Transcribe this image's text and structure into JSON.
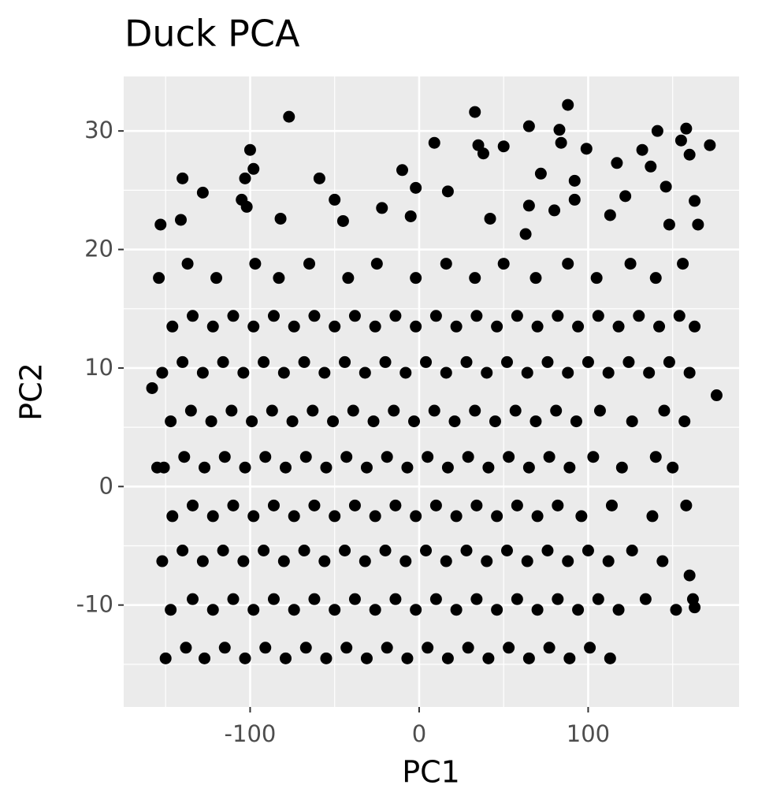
{
  "chart_data": {
    "type": "scatter",
    "title": "Duck PCA",
    "x_label": "PC1",
    "y_label": "PC2",
    "xlim": [
      -174.8,
      189.3
    ],
    "ylim": [
      -18.6,
      34.6
    ],
    "xticks": [
      -100,
      0,
      100
    ],
    "yticks": [
      -10,
      0,
      10,
      20,
      30
    ],
    "grid": true,
    "color": "#000000",
    "background": "#ebebeb",
    "x": [
      -150,
      -138,
      -127,
      -115,
      -103,
      -91,
      -79,
      -67,
      -55,
      -43,
      -31,
      -19,
      -7,
      5,
      17,
      29,
      41,
      53,
      65,
      77,
      89,
      101,
      113,
      -147,
      -134,
      -122,
      -110,
      -98,
      -86,
      -74,
      -62,
      -50,
      -38,
      -26,
      -14,
      -2,
      10,
      22,
      34,
      46,
      58,
      70,
      82,
      94,
      106,
      118,
      134,
      152,
      162,
      -152,
      -140,
      -128,
      -116,
      -104,
      -92,
      -80,
      -68,
      -56,
      -44,
      -32,
      -20,
      -8,
      4,
      16,
      28,
      40,
      52,
      64,
      76,
      88,
      100,
      112,
      126,
      144,
      -146,
      -134,
      -122,
      -110,
      -98,
      -86,
      -74,
      -62,
      -50,
      -38,
      -26,
      -14,
      -2,
      10,
      22,
      34,
      46,
      58,
      70,
      82,
      96,
      114,
      138,
      158,
      -151,
      -139,
      -127,
      -115,
      -103,
      -91,
      -79,
      -67,
      -55,
      -43,
      -31,
      -19,
      -7,
      5,
      17,
      29,
      41,
      53,
      65,
      77,
      89,
      103,
      120,
      140,
      150,
      -147,
      -135,
      -123,
      -111,
      -99,
      -87,
      -75,
      -63,
      -51,
      -39,
      -27,
      -15,
      -3,
      9,
      21,
      33,
      45,
      57,
      69,
      81,
      93,
      107,
      126,
      145,
      157,
      -152,
      -140,
      -128,
      -116,
      -104,
      -92,
      -80,
      -68,
      -56,
      -44,
      -32,
      -20,
      -8,
      4,
      16,
      28,
      40,
      52,
      64,
      76,
      88,
      100,
      112,
      124,
      136,
      148,
      160,
      -146,
      -134,
      -122,
      -110,
      -98,
      -86,
      -74,
      -62,
      -50,
      -38,
      -26,
      -14,
      -2,
      10,
      22,
      34,
      46,
      58,
      70,
      82,
      94,
      106,
      118,
      130,
      142,
      154,
      163,
      -154,
      -137,
      -120,
      -97,
      -83,
      -65,
      -42,
      -25,
      -2,
      16,
      33,
      50,
      69,
      88,
      105,
      125,
      140,
      156,
      -77,
      33,
      88,
      65,
      83,
      158,
      141,
      172,
      -100,
      9,
      35,
      50,
      99,
      132,
      155,
      84,
      -140,
      -128,
      -98,
      -103,
      -59,
      -10,
      72,
      117,
      92,
      137,
      146,
      160,
      -105,
      -102,
      -50,
      -22,
      17,
      65,
      80,
      92,
      122,
      163,
      -82,
      -141,
      -153,
      -45,
      -5,
      42,
      113,
      148,
      165,
      -2,
      38,
      63,
      -155,
      -158,
      176,
      163,
      160
    ],
    "values": [
      -14.5,
      -13.6,
      -14.5,
      -13.6,
      -14.5,
      -13.6,
      -14.5,
      -13.6,
      -14.5,
      -13.6,
      -14.5,
      -13.6,
      -14.5,
      -13.6,
      -14.5,
      -13.6,
      -14.5,
      -13.6,
      -14.5,
      -13.6,
      -14.5,
      -13.6,
      -14.5,
      -10.4,
      -9.5,
      -10.4,
      -9.5,
      -10.4,
      -9.5,
      -10.4,
      -9.5,
      -10.4,
      -9.5,
      -10.4,
      -9.5,
      -10.4,
      -9.5,
      -10.4,
      -9.5,
      -10.4,
      -9.5,
      -10.4,
      -9.5,
      -10.4,
      -9.5,
      -10.4,
      -9.5,
      -10.4,
      -9.5,
      -6.3,
      -5.4,
      -6.3,
      -5.4,
      -6.3,
      -5.4,
      -6.3,
      -5.4,
      -6.3,
      -5.4,
      -6.3,
      -5.4,
      -6.3,
      -5.4,
      -6.3,
      -5.4,
      -6.3,
      -5.4,
      -6.3,
      -5.4,
      -6.3,
      -5.4,
      -6.3,
      -5.4,
      -6.3,
      -2.5,
      -1.6,
      -2.5,
      -1.6,
      -2.5,
      -1.6,
      -2.5,
      -1.6,
      -2.5,
      -1.6,
      -2.5,
      -1.6,
      -2.5,
      -1.6,
      -2.5,
      -1.6,
      -2.5,
      -1.6,
      -2.5,
      -1.6,
      -2.5,
      -1.6,
      -2.5,
      -1.6,
      1.6,
      2.5,
      1.6,
      2.5,
      1.6,
      2.5,
      1.6,
      2.5,
      1.6,
      2.5,
      1.6,
      2.5,
      1.6,
      2.5,
      1.6,
      2.5,
      1.6,
      2.5,
      1.6,
      2.5,
      1.6,
      2.5,
      1.6,
      2.5,
      1.6,
      5.5,
      6.4,
      5.5,
      6.4,
      5.5,
      6.4,
      5.5,
      6.4,
      5.5,
      6.4,
      5.5,
      6.4,
      5.5,
      6.4,
      5.5,
      6.4,
      5.5,
      6.4,
      5.5,
      6.4,
      5.5,
      6.4,
      5.5,
      6.4,
      5.5,
      9.6,
      10.5,
      9.6,
      10.5,
      9.6,
      10.5,
      9.6,
      10.5,
      9.6,
      10.5,
      9.6,
      10.5,
      9.6,
      10.5,
      9.6,
      10.5,
      9.6,
      10.5,
      9.6,
      10.5,
      9.6,
      10.5,
      9.6,
      10.5,
      9.6,
      10.5,
      9.6,
      13.5,
      14.4,
      13.5,
      14.4,
      13.5,
      14.4,
      13.5,
      14.4,
      13.5,
      14.4,
      13.5,
      14.4,
      13.5,
      14.4,
      13.5,
      14.4,
      13.5,
      14.4,
      13.5,
      14.4,
      13.5,
      14.4,
      13.5,
      14.4,
      13.5,
      14.4,
      13.5,
      17.6,
      18.8,
      17.6,
      18.8,
      17.6,
      18.8,
      17.6,
      18.8,
      17.6,
      18.8,
      17.6,
      18.8,
      17.6,
      18.8,
      17.6,
      18.8,
      17.6,
      18.8,
      31.2,
      31.6,
      32.2,
      30.4,
      30.1,
      30.2,
      30,
      28.8,
      28.4,
      29,
      28.8,
      28.7,
      28.5,
      28.4,
      29.2,
      29,
      26,
      24.8,
      26.8,
      26,
      26,
      26.7,
      26.4,
      27.3,
      25.8,
      27,
      25.3,
      28,
      24.2,
      23.6,
      24.2,
      23.5,
      24.9,
      23.7,
      23.3,
      24.2,
      24.5,
      24.1,
      22.6,
      22.5,
      22.1,
      22.4,
      22.8,
      22.6,
      22.9,
      22.1,
      22.1,
      25.2,
      28.1,
      21.3,
      1.6,
      8.3,
      7.7,
      -10.2,
      -7.5
    ]
  }
}
